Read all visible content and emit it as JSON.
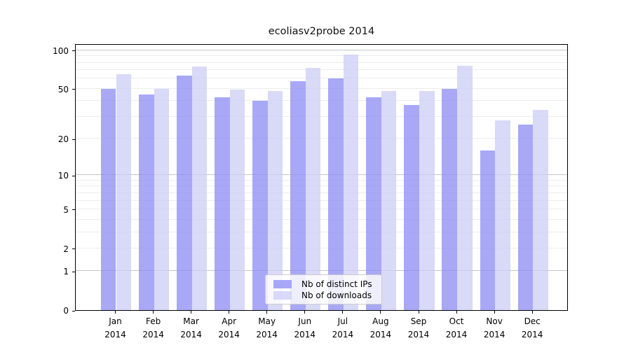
{
  "title": "ecoliasv2probe 2014",
  "y_axis": {
    "tick_labels": [
      "100",
      "50",
      "20",
      "10",
      "5",
      "2",
      "1",
      "0"
    ]
  },
  "x_axis": {
    "months": [
      "Jan",
      "Feb",
      "Mar",
      "Apr",
      "May",
      "Jun",
      "Jul",
      "Aug",
      "Sep",
      "Oct",
      "Nov",
      "Dec"
    ],
    "year": "2014"
  },
  "legend": {
    "items": [
      {
        "label": "Nb of distinct IPs",
        "color": "#8b8bf3c0"
      },
      {
        "label": "Nb of downloads",
        "color": "#ccccf6c0"
      }
    ]
  },
  "chart_data": {
    "type": "bar",
    "title": "ecoliasv2probe 2014",
    "categories": [
      "Jan 2014",
      "Feb 2014",
      "Mar 2014",
      "Apr 2014",
      "May 2014",
      "Jun 2014",
      "Jul 2014",
      "Aug 2014",
      "Sep 2014",
      "Oct 2014",
      "Nov 2014",
      "Dec 2014"
    ],
    "series": [
      {
        "name": "Nb of distinct IPs",
        "color": "#8b8bf3c0",
        "values": [
          50,
          45,
          63,
          43,
          40,
          57,
          60,
          43,
          37,
          50,
          16,
          26
        ]
      },
      {
        "name": "Nb of downloads",
        "color": "#ccccf6c0",
        "values": [
          65,
          50,
          75,
          49,
          48,
          73,
          92,
          48,
          48,
          76,
          28,
          34
        ]
      }
    ],
    "yscale": "log1p",
    "yticks": [
      0,
      1,
      2,
      5,
      10,
      20,
      50,
      100
    ],
    "ylim": [
      0,
      113
    ],
    "xlabel": "",
    "ylabel": "",
    "grid": "horizontal",
    "legend_position": "lower center"
  }
}
